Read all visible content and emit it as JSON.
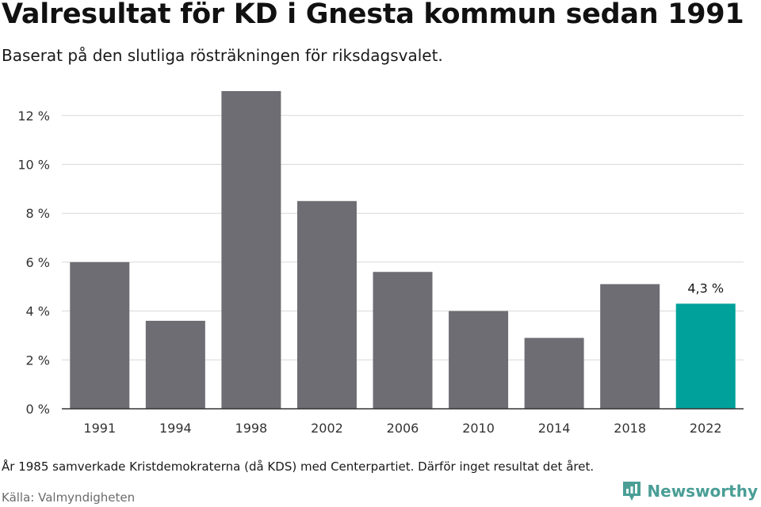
{
  "title": "Valresultat för KD i Gnesta kommun sedan 1991",
  "subtitle": "Baserat på den slutliga rösträkningen för riksdagsvalet.",
  "footnote": "År 1985 samverkade Kristdemokraterna (då KDS) med Centerpartiet. Därför inget resultat det året.",
  "source": "Källa: Valmyndigheten",
  "brand": {
    "name": "Newsworthy",
    "icon": "newsworthy-logo-icon"
  },
  "colors": {
    "bar": "#6e6d73",
    "highlight": "#00a19a",
    "grid": "#d9d9d9",
    "axis": "#333333"
  },
  "chart_data": {
    "type": "bar",
    "categories": [
      "1991",
      "1994",
      "1998",
      "2002",
      "2006",
      "2010",
      "2014",
      "2018",
      "2022"
    ],
    "values": [
      6.0,
      3.6,
      13.0,
      8.5,
      5.6,
      4.0,
      2.9,
      5.1,
      4.3
    ],
    "ylim": [
      0,
      13
    ],
    "yticks": [
      0,
      2,
      4,
      6,
      8,
      10,
      12
    ],
    "ytick_labels": [
      "0 %",
      "2 %",
      "4 %",
      "6 %",
      "8 %",
      "10 %",
      "12 %"
    ],
    "highlight_index": 8,
    "data_labels": [
      {
        "index": 8,
        "text": "4,3 %"
      }
    ],
    "grid": true,
    "xlabel": "",
    "ylabel": ""
  }
}
